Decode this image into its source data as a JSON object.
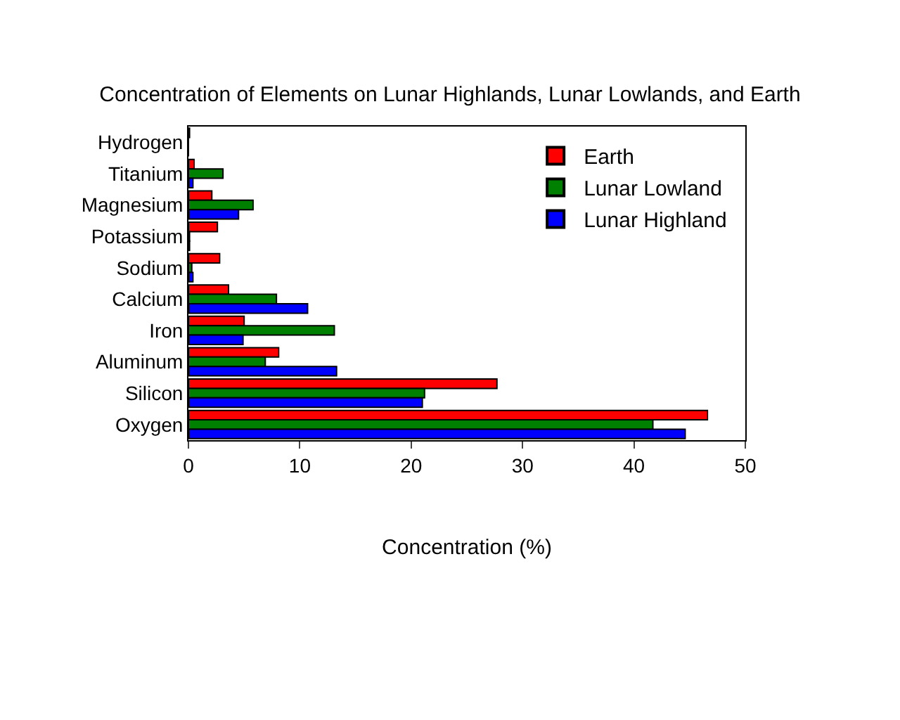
{
  "chart_data": {
    "type": "bar",
    "orientation": "horizontal",
    "title": "Concentration of Elements on Lunar Highlands, Lunar Lowlands, and Earth",
    "xlabel": "Concentration (%)",
    "categories": [
      "Hydrogen",
      "Titanium",
      "Magnesium",
      "Potassium",
      "Sodium",
      "Calcium",
      "Iron",
      "Aluminum",
      "Silicon",
      "Oxygen"
    ],
    "series": [
      {
        "name": "Earth",
        "color": "#ff0000",
        "values": [
          0.1,
          0.5,
          2.1,
          2.6,
          2.8,
          3.6,
          5.0,
          8.1,
          27.7,
          46.6
        ]
      },
      {
        "name": "Lunar Lowland",
        "color": "#008000",
        "values": [
          0,
          3.1,
          5.8,
          0.1,
          0.3,
          7.9,
          13.1,
          6.9,
          21.2,
          41.7
        ]
      },
      {
        "name": "Lunar Highland",
        "color": "#0000ff",
        "values": [
          0,
          0.4,
          4.5,
          0.1,
          0.4,
          10.7,
          4.9,
          13.3,
          21.0,
          44.6
        ]
      }
    ],
    "xlim": [
      0,
      50
    ],
    "xticks": [
      0,
      10,
      20,
      30,
      40,
      50
    ],
    "legend": "top right"
  }
}
